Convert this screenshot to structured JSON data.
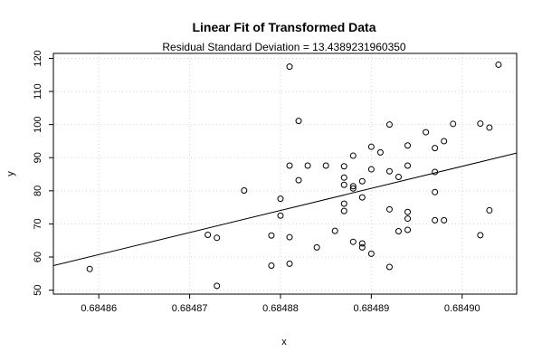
{
  "chart_data": {
    "type": "scatter",
    "title": "Linear Fit of Transformed Data",
    "subtitle": "Residual Standard Deviation =  13.4389231960350",
    "xlabel": "x",
    "ylabel": "y",
    "xlim": [
      0.684855,
      0.684906
    ],
    "ylim": [
      48.8,
      121.5
    ],
    "xticks": [
      0.68486,
      0.68487,
      0.68488,
      0.68489,
      0.6849
    ],
    "xtick_labels": [
      "0.68486",
      "0.68487",
      "0.68488",
      "0.68489",
      "0.68490"
    ],
    "yticks": [
      50,
      60,
      70,
      80,
      90,
      100,
      110,
      120
    ],
    "ytick_labels": [
      "50",
      "60",
      "70",
      "80",
      "90",
      "100",
      "110",
      "120"
    ],
    "grid": true,
    "fit_line": {
      "x": [
        0.684855,
        0.684906
      ],
      "y": [
        57.4,
        91.4
      ]
    },
    "points": [
      [
        0.684859,
        56.4
      ],
      [
        0.684872,
        66.7
      ],
      [
        0.684873,
        65.8
      ],
      [
        0.684873,
        51.3
      ],
      [
        0.684876,
        80.1
      ],
      [
        0.684879,
        57.4
      ],
      [
        0.684879,
        66.5
      ],
      [
        0.68488,
        77.6
      ],
      [
        0.68488,
        72.5
      ],
      [
        0.684881,
        58.0
      ],
      [
        0.684881,
        117.5
      ],
      [
        0.684881,
        66.0
      ],
      [
        0.684881,
        87.6
      ],
      [
        0.684882,
        83.2
      ],
      [
        0.684882,
        101.1
      ],
      [
        0.684883,
        87.6
      ],
      [
        0.684884,
        62.9
      ],
      [
        0.684885,
        87.6
      ],
      [
        0.684886,
        67.9
      ],
      [
        0.684887,
        87.4
      ],
      [
        0.684887,
        81.8
      ],
      [
        0.684887,
        76.1
      ],
      [
        0.684887,
        73.9
      ],
      [
        0.684887,
        84.0
      ],
      [
        0.684888,
        64.6
      ],
      [
        0.684888,
        80.7
      ],
      [
        0.684888,
        90.6
      ],
      [
        0.684888,
        81.4
      ],
      [
        0.684889,
        62.9
      ],
      [
        0.684889,
        78.0
      ],
      [
        0.684889,
        82.9
      ],
      [
        0.684889,
        64.1
      ],
      [
        0.68489,
        93.3
      ],
      [
        0.68489,
        86.5
      ],
      [
        0.68489,
        61.0
      ],
      [
        0.684891,
        91.6
      ],
      [
        0.684892,
        57.0
      ],
      [
        0.684892,
        85.9
      ],
      [
        0.684892,
        74.4
      ],
      [
        0.684892,
        100.0
      ],
      [
        0.684893,
        67.8
      ],
      [
        0.684893,
        84.2
      ],
      [
        0.684894,
        73.6
      ],
      [
        0.684894,
        93.7
      ],
      [
        0.684894,
        71.6
      ],
      [
        0.684894,
        87.6
      ],
      [
        0.684894,
        68.2
      ],
      [
        0.684896,
        97.7
      ],
      [
        0.684897,
        92.9
      ],
      [
        0.684897,
        85.7
      ],
      [
        0.684897,
        79.6
      ],
      [
        0.684897,
        71.1
      ],
      [
        0.684898,
        95.0
      ],
      [
        0.684898,
        71.1
      ],
      [
        0.684899,
        100.2
      ],
      [
        0.684902,
        100.3
      ],
      [
        0.684902,
        66.6
      ],
      [
        0.684903,
        99.1
      ],
      [
        0.684903,
        74.1
      ],
      [
        0.684904,
        118.1
      ]
    ]
  }
}
